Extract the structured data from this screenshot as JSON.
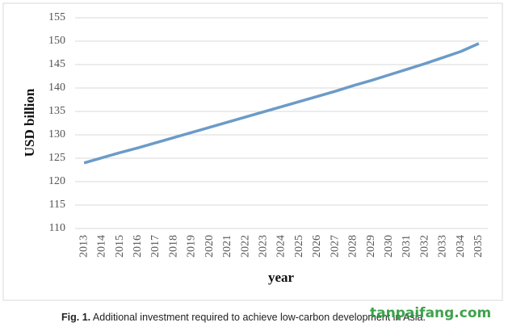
{
  "chart_data": {
    "type": "line",
    "y_label": "USD billion",
    "x_label": "year",
    "categories": [
      "2013",
      "2014",
      "2015",
      "2016",
      "2017",
      "2018",
      "2019",
      "2020",
      "2021",
      "2022",
      "2023",
      "2024",
      "2025",
      "2026",
      "2027",
      "2028",
      "2029",
      "2030",
      "2031",
      "2032",
      "2033",
      "2034",
      "2035"
    ],
    "series": [
      {
        "name": "Additional investment",
        "color": "#6b9bc8",
        "values": [
          124,
          125.1,
          126.2,
          127.2,
          128.3,
          129.4,
          130.5,
          131.6,
          132.7,
          133.8,
          134.9,
          136.0,
          137.1,
          138.2,
          139.3,
          140.5,
          141.6,
          142.8,
          144.0,
          145.2,
          146.5,
          147.8,
          149.5
        ]
      }
    ],
    "ylim": [
      110,
      155
    ],
    "yticks": [
      110,
      115,
      120,
      125,
      130,
      135,
      140,
      145,
      150,
      155
    ],
    "grid": true,
    "caption_label": "Fig. 1.",
    "caption": "Additional investment required to achieve low-carbon development in Asia.",
    "watermark": "tanpaifang.com"
  }
}
